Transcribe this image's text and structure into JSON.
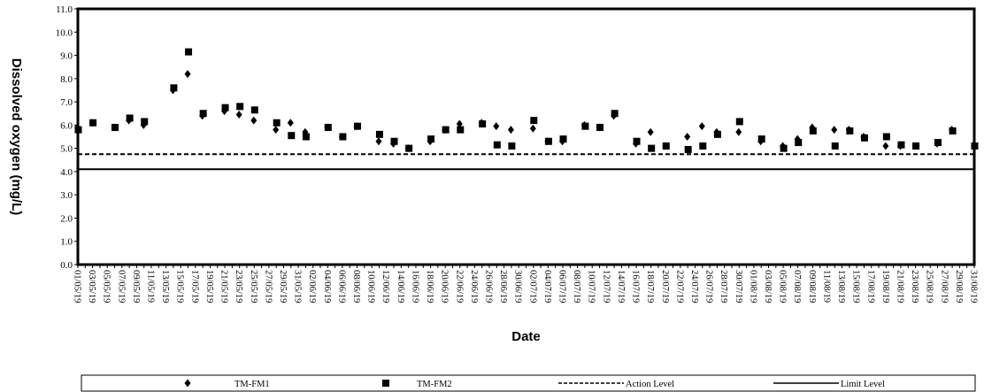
{
  "chart_data": {
    "type": "scatter",
    "xlabel": "Date",
    "ylabel": "Dissolved oxygen (mg/L)",
    "ylim": [
      0,
      11
    ],
    "yticks": [
      "0.0",
      "1.0",
      "2.0",
      "3.0",
      "4.0",
      "5.0",
      "6.0",
      "7.0",
      "8.0",
      "9.0",
      "10.0",
      "11.0"
    ],
    "x_tick_labels": [
      "01/05/19",
      "03/05/19",
      "05/05/19",
      "07/05/19",
      "09/05/19",
      "11/05/19",
      "13/05/19",
      "15/05/19",
      "17/05/19",
      "19/05/19",
      "21/05/19",
      "23/05/19",
      "25/05/19",
      "27/05/19",
      "29/05/19",
      "31/05/19",
      "02/06/19",
      "04/06/19",
      "06/06/19",
      "08/06/19",
      "10/06/19",
      "12/06/19",
      "14/06/19",
      "16/06/19",
      "18/06/19",
      "20/06/19",
      "22/06/19",
      "24/06/19",
      "26/06/19",
      "28/06/19",
      "30/06/19",
      "02/07/19",
      "04/07/19",
      "06/07/19",
      "08/07/19",
      "10/07/19",
      "12/07/19",
      "14/07/19",
      "16/07/19",
      "18/07/19",
      "20/07/19",
      "22/07/19",
      "24/07/19",
      "26/07/19",
      "28/07/19",
      "30/07/19",
      "01/08/19",
      "03/08/19",
      "05/08/19",
      "07/08/19",
      "09/08/19",
      "11/08/19",
      "13/08/19",
      "15/08/19",
      "17/08/19",
      "19/08/19",
      "21/08/19",
      "23/08/19",
      "25/08/19",
      "27/08/19",
      "29/08/19",
      "31/08/19"
    ],
    "grid": false,
    "legend_position": "bottom",
    "series": [
      {
        "name": "TM-FM1",
        "marker": "diamond",
        "color": "#000000",
        "points": [
          [
            "01/05/19",
            5.9
          ],
          [
            "03/05/19",
            6.1
          ],
          [
            "06/05/19",
            5.9
          ],
          [
            "08/05/19",
            6.2
          ],
          [
            "10/05/19",
            6.0
          ],
          [
            "14/05/19",
            7.5
          ],
          [
            "16/05/19",
            8.2
          ],
          [
            "18/05/19",
            6.4
          ],
          [
            "21/05/19",
            6.6
          ],
          [
            "23/05/19",
            6.45
          ],
          [
            "25/05/19",
            6.2
          ],
          [
            "28/05/19",
            5.8
          ],
          [
            "30/05/19",
            6.1
          ],
          [
            "01/06/19",
            5.7
          ],
          [
            "04/06/19",
            5.9
          ],
          [
            "06/06/19",
            5.5
          ],
          [
            "08/06/19",
            5.95
          ],
          [
            "11/06/19",
            5.3
          ],
          [
            "13/06/19",
            5.2
          ],
          [
            "15/06/19",
            5.0
          ],
          [
            "18/06/19",
            5.3
          ],
          [
            "20/06/19",
            5.8
          ],
          [
            "22/06/19",
            6.05
          ],
          [
            "25/06/19",
            6.1
          ],
          [
            "27/06/19",
            5.95
          ],
          [
            "29/06/19",
            5.8
          ],
          [
            "02/07/19",
            5.85
          ],
          [
            "04/07/19",
            5.3
          ],
          [
            "06/07/19",
            5.3
          ],
          [
            "09/07/19",
            6.0
          ],
          [
            "11/07/19",
            5.9
          ],
          [
            "13/07/19",
            6.4
          ],
          [
            "16/07/19",
            5.2
          ],
          [
            "18/07/19",
            5.7
          ],
          [
            "20/07/19",
            5.1
          ],
          [
            "23/07/19",
            5.5
          ],
          [
            "25/07/19",
            5.95
          ],
          [
            "27/07/19",
            5.7
          ],
          [
            "30/07/19",
            5.7
          ],
          [
            "02/08/19",
            5.3
          ],
          [
            "05/08/19",
            5.1
          ],
          [
            "07/08/19",
            5.4
          ],
          [
            "09/08/19",
            5.9
          ],
          [
            "12/08/19",
            5.8
          ],
          [
            "14/08/19",
            5.8
          ],
          [
            "16/08/19",
            5.5
          ],
          [
            "19/08/19",
            5.1
          ],
          [
            "21/08/19",
            5.1
          ],
          [
            "23/08/19",
            5.1
          ],
          [
            "26/08/19",
            5.2
          ],
          [
            "28/08/19",
            5.8
          ],
          [
            "31/08/19",
            5.1
          ]
        ]
      },
      {
        "name": "TM-FM2",
        "marker": "square",
        "color": "#000000",
        "points": [
          [
            "01/05/19",
            5.8
          ],
          [
            "03/05/19",
            6.1
          ],
          [
            "06/05/19",
            5.9
          ],
          [
            "08/05/19",
            6.3
          ],
          [
            "10/05/19",
            6.15
          ],
          [
            "14/05/19",
            7.6
          ],
          [
            "16/05/19",
            9.15
          ],
          [
            "18/05/19",
            6.5
          ],
          [
            "21/05/19",
            6.75
          ],
          [
            "23/05/19",
            6.8
          ],
          [
            "25/05/19",
            6.65
          ],
          [
            "28/05/19",
            6.1
          ],
          [
            "30/05/19",
            5.55
          ],
          [
            "01/06/19",
            5.5
          ],
          [
            "04/06/19",
            5.9
          ],
          [
            "06/06/19",
            5.5
          ],
          [
            "08/06/19",
            5.95
          ],
          [
            "11/06/19",
            5.6
          ],
          [
            "13/06/19",
            5.3
          ],
          [
            "15/06/19",
            5.0
          ],
          [
            "18/06/19",
            5.4
          ],
          [
            "20/06/19",
            5.8
          ],
          [
            "22/06/19",
            5.8
          ],
          [
            "25/06/19",
            6.05
          ],
          [
            "27/06/19",
            5.15
          ],
          [
            "29/06/19",
            5.1
          ],
          [
            "02/07/19",
            6.2
          ],
          [
            "04/07/19",
            5.3
          ],
          [
            "06/07/19",
            5.4
          ],
          [
            "09/07/19",
            5.95
          ],
          [
            "11/07/19",
            5.9
          ],
          [
            "13/07/19",
            6.5
          ],
          [
            "16/07/19",
            5.3
          ],
          [
            "18/07/19",
            5.0
          ],
          [
            "20/07/19",
            5.1
          ],
          [
            "23/07/19",
            4.95
          ],
          [
            "25/07/19",
            5.1
          ],
          [
            "27/07/19",
            5.6
          ],
          [
            "30/07/19",
            6.15
          ],
          [
            "02/08/19",
            5.4
          ],
          [
            "05/08/19",
            5.0
          ],
          [
            "07/08/19",
            5.25
          ],
          [
            "09/08/19",
            5.75
          ],
          [
            "12/08/19",
            5.1
          ],
          [
            "14/08/19",
            5.75
          ],
          [
            "16/08/19",
            5.45
          ],
          [
            "19/08/19",
            5.5
          ],
          [
            "21/08/19",
            5.15
          ],
          [
            "23/08/19",
            5.1
          ],
          [
            "26/08/19",
            5.25
          ],
          [
            "28/08/19",
            5.75
          ],
          [
            "31/08/19",
            5.1
          ]
        ]
      },
      {
        "name": "Action Level",
        "line": "dashed",
        "color": "#000000",
        "value": 4.75
      },
      {
        "name": "Limit Level",
        "line": "solid",
        "color": "#000000",
        "value": 4.1
      }
    ]
  }
}
